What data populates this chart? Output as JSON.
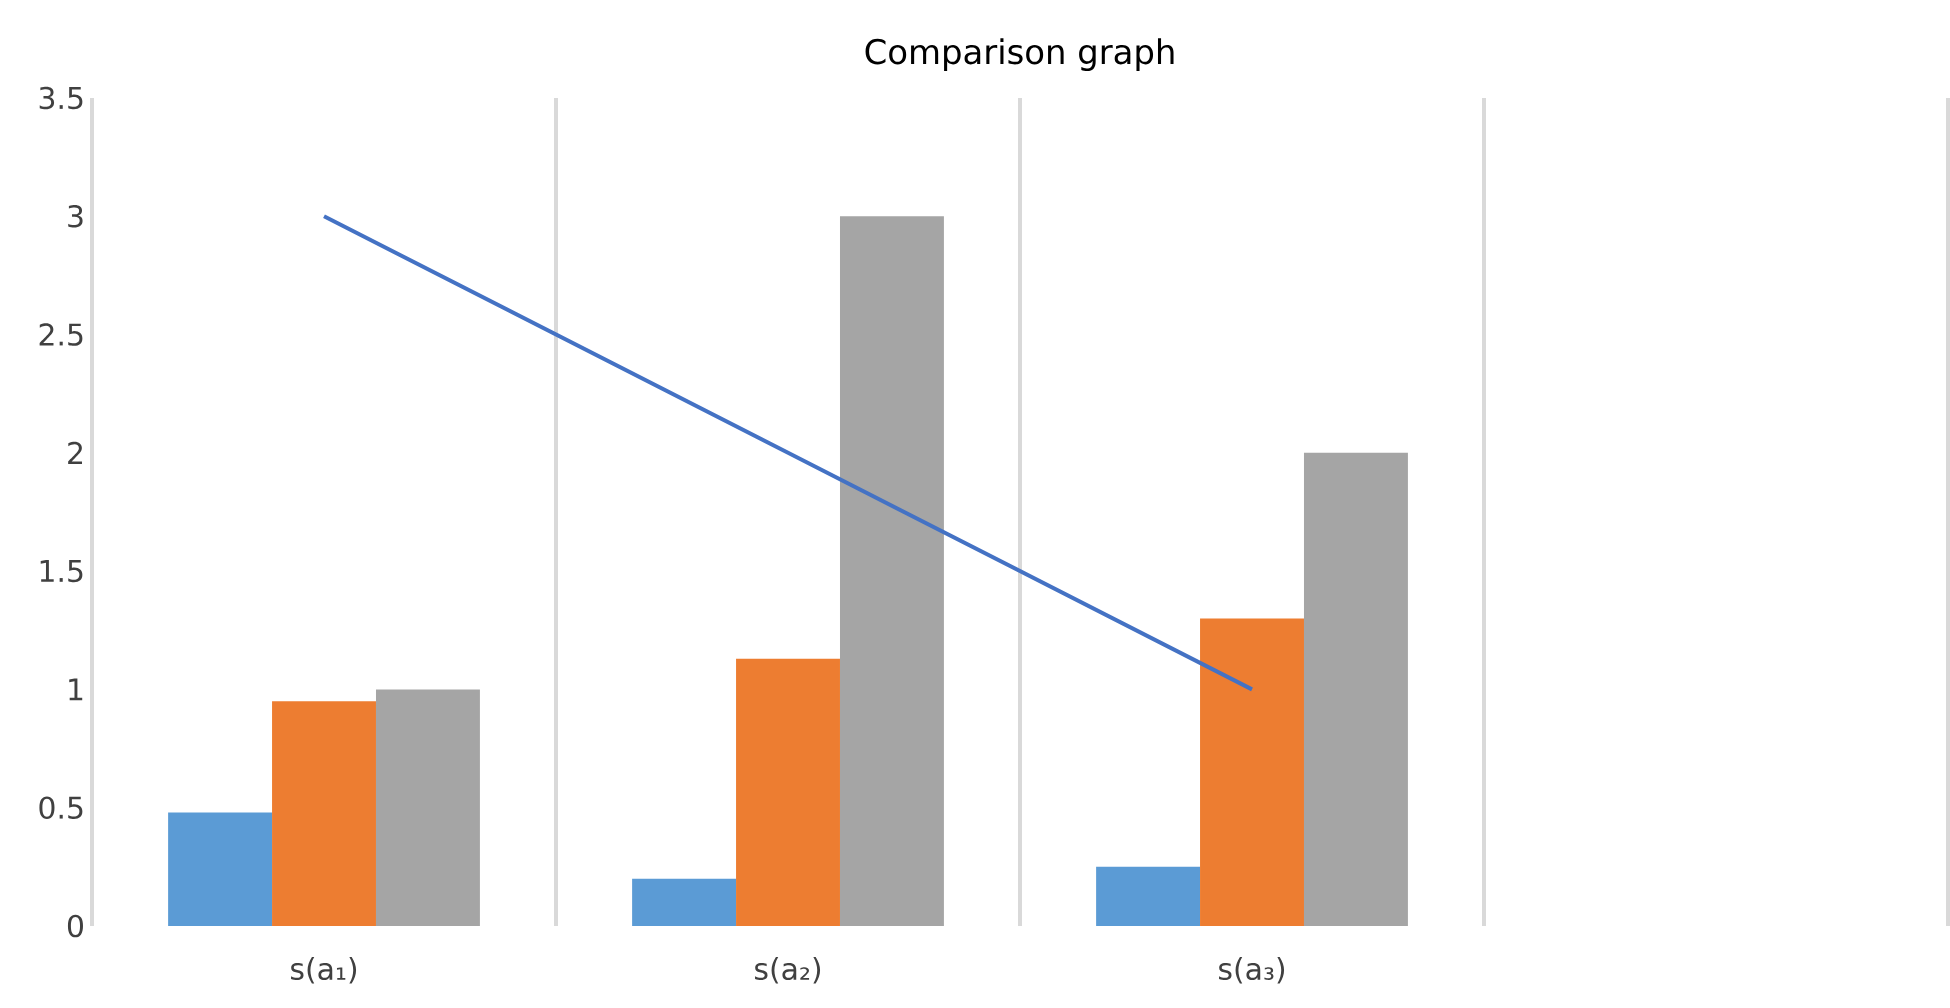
{
  "chart_data": {
    "type": "bar",
    "title": "Comparison graph",
    "categories": [
      "s(a₁)",
      "s(a₂)",
      "s(a₃)",
      null
    ],
    "series": [
      {
        "color": "#5b9bd5",
        "values": [
          0.48,
          0.2,
          0.25,
          null
        ]
      },
      {
        "color": "#ed7d31",
        "values": [
          0.95,
          1.13,
          1.3,
          null
        ]
      },
      {
        "color": "#a5a5a5",
        "values": [
          1.0,
          3.0,
          2.0,
          null
        ]
      },
      {
        "type": "line",
        "color": "#4472c4",
        "values": [
          3,
          2,
          1,
          null
        ]
      }
    ],
    "ylim": [
      0,
      3.5
    ],
    "yticks": [
      0,
      0.5,
      1,
      1.5,
      2,
      2.5,
      3,
      3.5
    ],
    "grid": "x",
    "legend": false
  }
}
